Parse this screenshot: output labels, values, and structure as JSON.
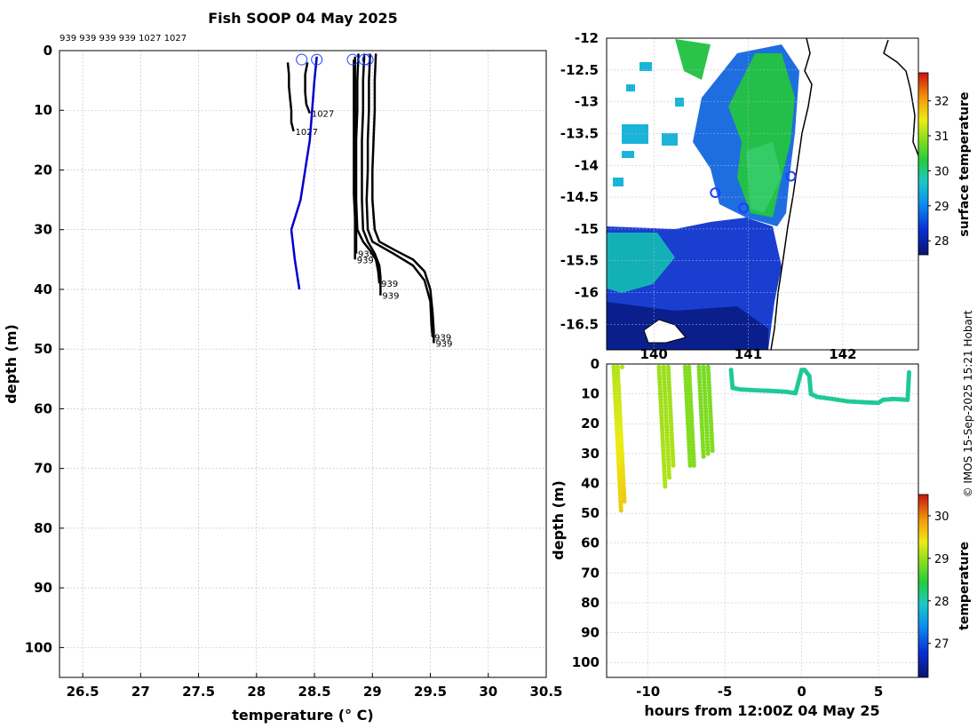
{
  "title": "Fish SOOP 04 May 2025",
  "credit": "© IMOS 15-Sep-2025 15:21 Hobart",
  "colors": {
    "profile_line": "#000000",
    "climatology_line": "#0000cc",
    "grid": "#b8b8d0",
    "marker": "#1f3fff"
  },
  "chart_data": [
    {
      "id": "profiles",
      "type": "line",
      "title": "Fish SOOP 04 May 2025",
      "xlabel": "temperature (° C)",
      "ylabel": "depth (m)",
      "xlim": [
        26.3,
        30.5
      ],
      "ylim": [
        105,
        0
      ],
      "xticks": [
        26.5,
        27,
        27.5,
        28,
        28.5,
        29,
        29.5,
        30,
        30.5
      ],
      "yticks": [
        0,
        10,
        20,
        30,
        40,
        50,
        60,
        70,
        80,
        90,
        100
      ],
      "header_labels": "939 939 939 939 1027 1027",
      "series": [
        {
          "name": "939",
          "color": "#000000",
          "end_label": "939",
          "points": [
            [
              29.03,
              0.5
            ],
            [
              29.02,
              5
            ],
            [
              29.02,
              10
            ],
            [
              29.01,
              15
            ],
            [
              29.0,
              20
            ],
            [
              29.0,
              25
            ],
            [
              29.02,
              30
            ],
            [
              29.06,
              32
            ],
            [
              29.2,
              33.5
            ],
            [
              29.35,
              35
            ],
            [
              29.45,
              37
            ],
            [
              29.5,
              40
            ],
            [
              29.52,
              44
            ],
            [
              29.53,
              47
            ],
            [
              29.53,
              49
            ]
          ]
        },
        {
          "name": "939",
          "color": "#000000",
          "end_label": "939",
          "points": [
            [
              28.98,
              0.5
            ],
            [
              28.97,
              5
            ],
            [
              28.97,
              10
            ],
            [
              28.96,
              15
            ],
            [
              28.96,
              20
            ],
            [
              28.95,
              25
            ],
            [
              28.96,
              30
            ],
            [
              29.0,
              32
            ],
            [
              29.18,
              34
            ],
            [
              29.35,
              36
            ],
            [
              29.45,
              38.5
            ],
            [
              29.5,
              42
            ],
            [
              29.51,
              46
            ],
            [
              29.52,
              48
            ]
          ]
        },
        {
          "name": "939",
          "color": "#000000",
          "end_label": "939",
          "points": [
            [
              28.93,
              0.5
            ],
            [
              28.92,
              5
            ],
            [
              28.92,
              10
            ],
            [
              28.91,
              15
            ],
            [
              28.91,
              20
            ],
            [
              28.91,
              25
            ],
            [
              28.92,
              30
            ],
            [
              28.96,
              32
            ],
            [
              29.02,
              34
            ],
            [
              29.06,
              36
            ],
            [
              29.07,
              38
            ],
            [
              29.07,
              41
            ]
          ]
        },
        {
          "name": "939",
          "color": "#000000",
          "end_label": "939",
          "points": [
            [
              28.88,
              0.5
            ],
            [
              28.87,
              5
            ],
            [
              28.87,
              10
            ],
            [
              28.86,
              15
            ],
            [
              28.86,
              20
            ],
            [
              28.86,
              25
            ],
            [
              28.87,
              30
            ],
            [
              28.92,
              32
            ],
            [
              28.98,
              33.5
            ],
            [
              29.03,
              35
            ],
            [
              29.05,
              37
            ],
            [
              29.06,
              39
            ]
          ]
        },
        {
          "name": "939",
          "color": "#000000",
          "end_label": "939",
          "points": [
            [
              28.85,
              1
            ],
            [
              28.85,
              5
            ],
            [
              28.85,
              10
            ],
            [
              28.85,
              15
            ],
            [
              28.85,
              20
            ],
            [
              28.85,
              25
            ],
            [
              28.86,
              30
            ],
            [
              28.86,
              34
            ]
          ]
        },
        {
          "name": "939",
          "color": "#000000",
          "end_label": "939",
          "points": [
            [
              28.84,
              1.5
            ],
            [
              28.84,
              6
            ],
            [
              28.84,
              12
            ],
            [
              28.84,
              18
            ],
            [
              28.84,
              24
            ],
            [
              28.85,
              28
            ],
            [
              28.85,
              35
            ]
          ]
        },
        {
          "name": "1027",
          "color": "#000000",
          "end_label": "1027",
          "points": [
            [
              28.44,
              2
            ],
            [
              28.42,
              4
            ],
            [
              28.42,
              7
            ],
            [
              28.43,
              9
            ],
            [
              28.45,
              10
            ],
            [
              28.46,
              10.5
            ]
          ]
        },
        {
          "name": "1027",
          "color": "#000000",
          "end_label": "1027",
          "points": [
            [
              28.27,
              2
            ],
            [
              28.28,
              4
            ],
            [
              28.28,
              6
            ],
            [
              28.29,
              8
            ],
            [
              28.3,
              10
            ],
            [
              28.3,
              12
            ],
            [
              28.32,
              13.5
            ]
          ]
        },
        {
          "name": "climatology",
          "color": "#0000cc",
          "end_label": "",
          "points": [
            [
              28.52,
              1
            ],
            [
              28.5,
              5
            ],
            [
              28.48,
              10
            ],
            [
              28.46,
              15
            ],
            [
              28.42,
              20
            ],
            [
              28.38,
              25
            ],
            [
              28.3,
              30
            ],
            [
              28.33,
              35
            ],
            [
              28.37,
              40
            ]
          ]
        }
      ],
      "surface_markers": [
        28.39,
        28.52,
        28.83,
        28.93,
        28.96
      ]
    },
    {
      "id": "map",
      "type": "heatmap",
      "colorbar_label": "surface temperature",
      "xlim": [
        139.5,
        142.8
      ],
      "ylim": [
        -16.9,
        -12.0
      ],
      "xticks": [
        140,
        141,
        142
      ],
      "xtick_labels": [
        "140",
        "141",
        "142"
      ],
      "yticks": [
        -12,
        -12.5,
        -13,
        -13.5,
        -14,
        -14.5,
        -15,
        -15.5,
        -16,
        -16.5
      ],
      "colorbar_ticks": [
        28,
        29,
        30,
        31,
        32
      ],
      "colorbar_range": [
        27.6,
        32.8
      ],
      "stations": [
        [
          141.45,
          -14.17
        ],
        [
          140.95,
          -14.67
        ],
        [
          140.65,
          -14.43
        ]
      ]
    },
    {
      "id": "timeseries",
      "type": "scatter",
      "xlabel": "hours from 12:00Z 04 May 25",
      "ylabel": "depth (m)",
      "colorbar_label": "temperature",
      "xlim": [
        -12.7,
        7.6
      ],
      "ylim": [
        105,
        0
      ],
      "xticks": [
        -10,
        -5,
        0,
        5
      ],
      "yticks": [
        0,
        10,
        20,
        30,
        40,
        50,
        60,
        70,
        80,
        90,
        100
      ],
      "colorbar_ticks": [
        27,
        28,
        29,
        30
      ],
      "colorbar_range": [
        26.2,
        30.5
      ],
      "casts": [
        {
          "x": -12.25,
          "max_depth": 49,
          "t_surface": 29.1,
          "t_bottom": 29.6
        },
        {
          "x": -12.0,
          "max_depth": 46,
          "t_surface": 29.1,
          "t_bottom": 29.6
        },
        {
          "x": -11.7,
          "max_depth": 1,
          "t_surface": 29.1,
          "t_bottom": 29.1
        },
        {
          "x": -9.3,
          "max_depth": 41,
          "t_surface": 29.0,
          "t_bottom": 29.1
        },
        {
          "x": -9.0,
          "max_depth": 38,
          "t_surface": 29.0,
          "t_bottom": 29.1
        },
        {
          "x": -8.7,
          "max_depth": 34,
          "t_surface": 29.0,
          "t_bottom": 29.1
        },
        {
          "x": -7.6,
          "max_depth": 34,
          "t_surface": 28.9,
          "t_bottom": 28.9
        },
        {
          "x": -7.35,
          "max_depth": 34,
          "t_surface": 28.9,
          "t_bottom": 28.9
        },
        {
          "x": -6.7,
          "max_depth": 31,
          "t_surface": 28.85,
          "t_bottom": 28.9
        },
        {
          "x": -6.4,
          "max_depth": 30,
          "t_surface": 28.85,
          "t_bottom": 28.9
        },
        {
          "x": -6.1,
          "max_depth": 29,
          "t_surface": 28.85,
          "t_bottom": 28.9
        }
      ],
      "tow": {
        "t": 28.1,
        "points": [
          [
            -4.6,
            2
          ],
          [
            -4.5,
            8
          ],
          [
            -4,
            8.5
          ],
          [
            -3,
            8.8
          ],
          [
            -2,
            9
          ],
          [
            -1,
            9.3
          ],
          [
            -0.4,
            9.8
          ],
          [
            0,
            2
          ],
          [
            0.2,
            2
          ],
          [
            0.5,
            4
          ],
          [
            0.6,
            10
          ],
          [
            1,
            11
          ],
          [
            2,
            11.7
          ],
          [
            3,
            12.5
          ],
          [
            4,
            12.8
          ],
          [
            5,
            13
          ],
          [
            5.3,
            12
          ],
          [
            6,
            11.7
          ],
          [
            6.9,
            12
          ],
          [
            7.0,
            2
          ]
        ]
      }
    }
  ]
}
